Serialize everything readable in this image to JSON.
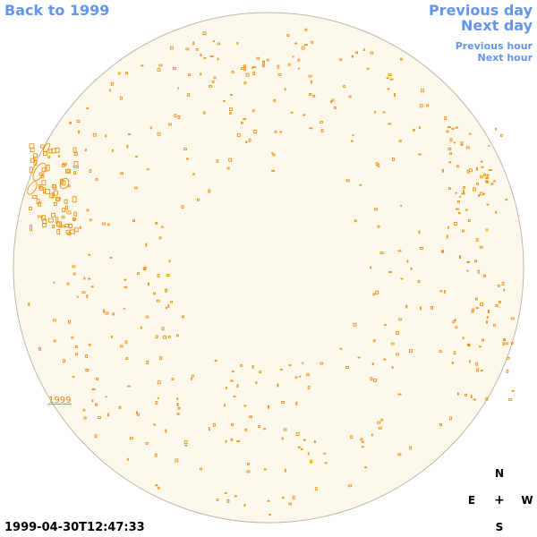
{
  "nav": {
    "back_label": "Back to 1999",
    "prev_day_label": "Previous day",
    "next_day_label": "Next day",
    "prev_hour_label": "Previous hour",
    "next_hour_label": "Next hour"
  },
  "disk": {
    "link_label": "1999",
    "fill_color": "#fdf8ec",
    "outline_color": "#bdb7a8",
    "feature_color": "#ee8800"
  },
  "timestamp": "1999-04-30T12:47:33",
  "compass": {
    "north": "N",
    "east": "E",
    "center": "+",
    "west": "W",
    "south": "S"
  }
}
